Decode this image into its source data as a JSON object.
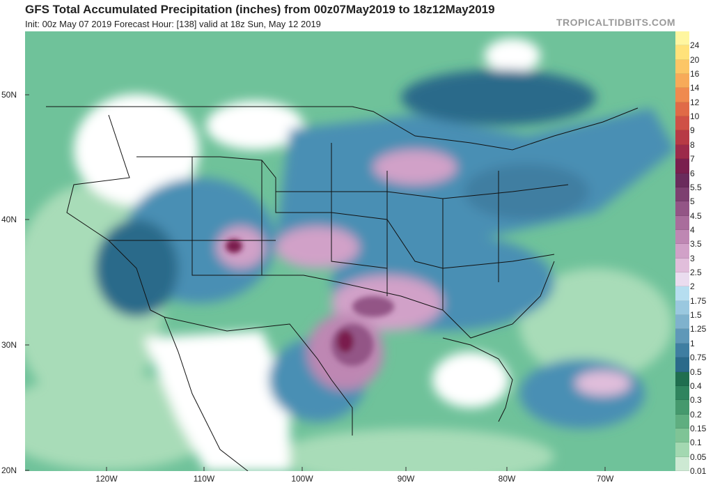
{
  "header": {
    "title": "GFS Total Accumulated Precipitation (inches) from 00z07May2019 to 18z12May2019",
    "subtitle": "Init: 00z May 07 2019   Forecast Hour: [138]   valid at 18z Sun, May 12 2019",
    "brand": "TROPICALTIDBITS.COM"
  },
  "axes": {
    "lat_labels": [
      "50N",
      "40N",
      "30N",
      "20N"
    ],
    "lon_labels": [
      "120W",
      "110W",
      "100W",
      "90W",
      "80W",
      "70W"
    ]
  },
  "colorbar": {
    "labels": [
      "24",
      "20",
      "16",
      "14",
      "12",
      "10",
      "9",
      "8",
      "7",
      "6",
      "5.5",
      "5",
      "4.5",
      "4",
      "3.5",
      "3",
      "2.5",
      "2",
      "1.75",
      "1.5",
      "1.25",
      "1",
      "0.75",
      "0.5",
      "0.4",
      "0.3",
      "0.2",
      "0.15",
      "0.1",
      "0.05",
      "0.01"
    ],
    "colors": [
      "#fff6a0",
      "#ffe27a",
      "#fcc666",
      "#f7aa59",
      "#ef8a4f",
      "#e06a47",
      "#cf5046",
      "#b73a45",
      "#9c2a4a",
      "#7a1f4e",
      "#6a2b5c",
      "#7d3f70",
      "#935586",
      "#a96d9c",
      "#be87b3",
      "#d1a1c8",
      "#e1bedb",
      "#eadcef",
      "#b6def0",
      "#9ac8df",
      "#7fb2cd",
      "#5f98b8",
      "#3f7ea1",
      "#2a6a8a",
      "#1f6e4f",
      "#2f845e",
      "#45996d",
      "#5fae80",
      "#7fc496",
      "#a3d8b1",
      "#cde9d3"
    ]
  },
  "map_colors": {
    "ocean_base": "#6fc29a",
    "land_base": "#ffffff",
    "light_green": "#a8dcb8",
    "mid_green": "#45996d",
    "blue": "#4a8fb4",
    "dark_blue": "#2a6a8a",
    "pink": "#d1a1c8",
    "purple": "#935586",
    "maroon": "#7a1f4e"
  }
}
